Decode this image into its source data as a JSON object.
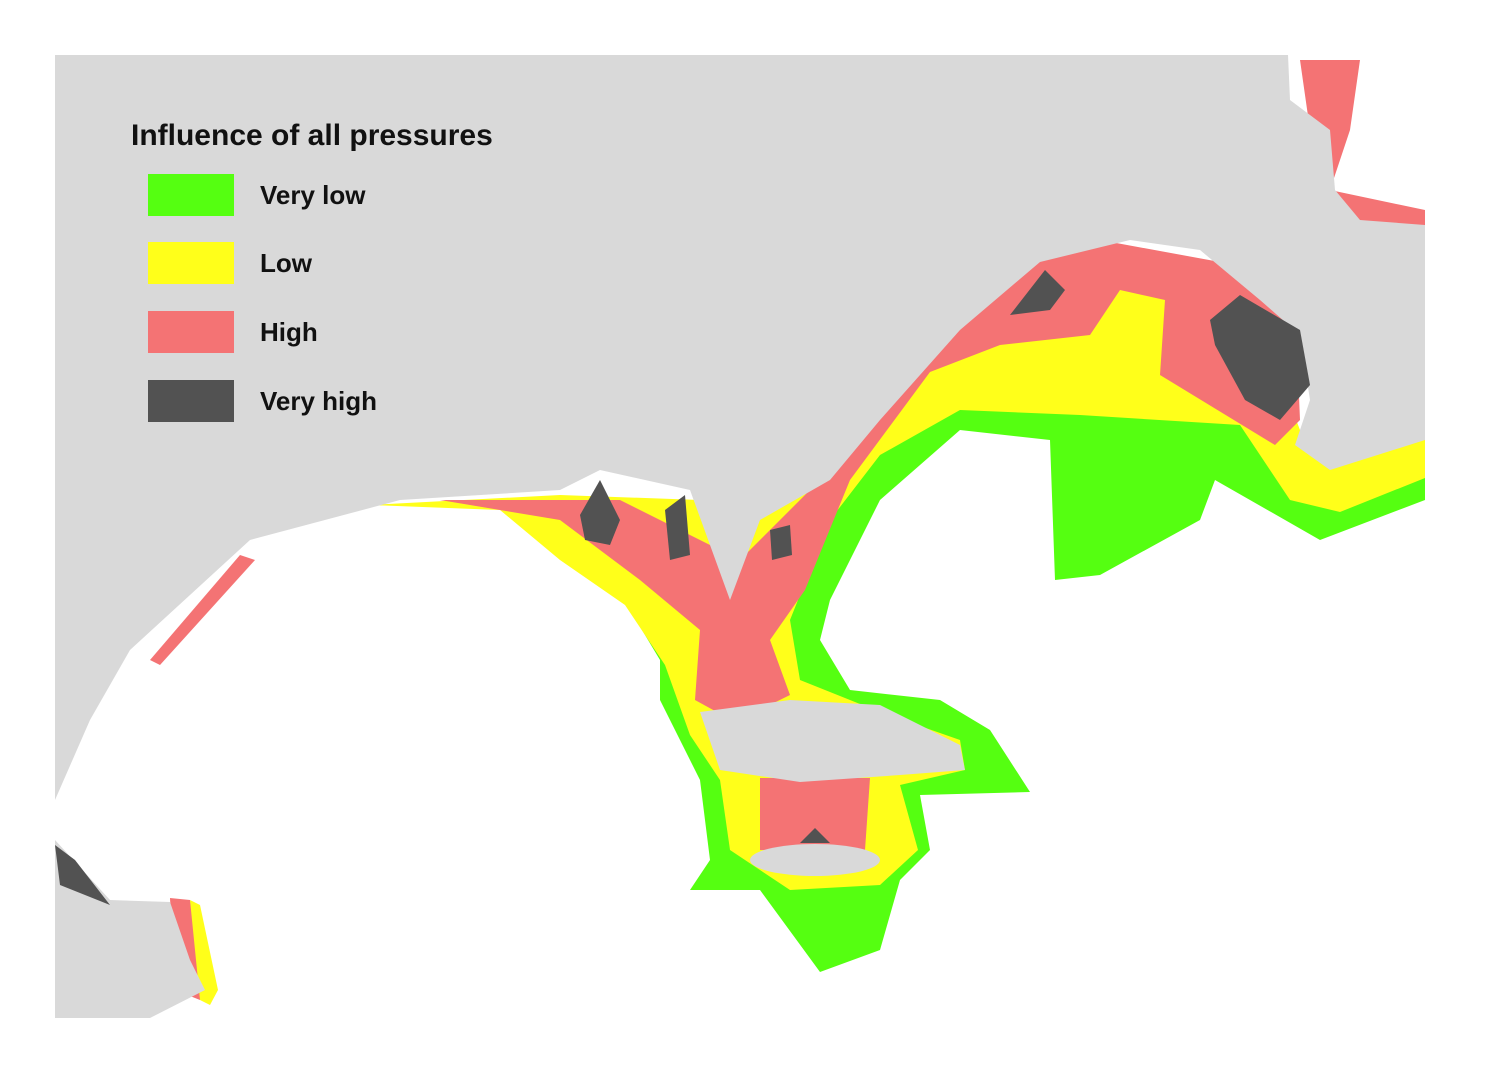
{
  "legend": {
    "title": "Influence of all pressures",
    "items": [
      {
        "label": "Very low",
        "color": "#55ff11"
      },
      {
        "label": "Low",
        "color": "#ffff1a"
      },
      {
        "label": "High",
        "color": "#f47374"
      },
      {
        "label": "Very high",
        "color": "#525252"
      }
    ]
  }
}
